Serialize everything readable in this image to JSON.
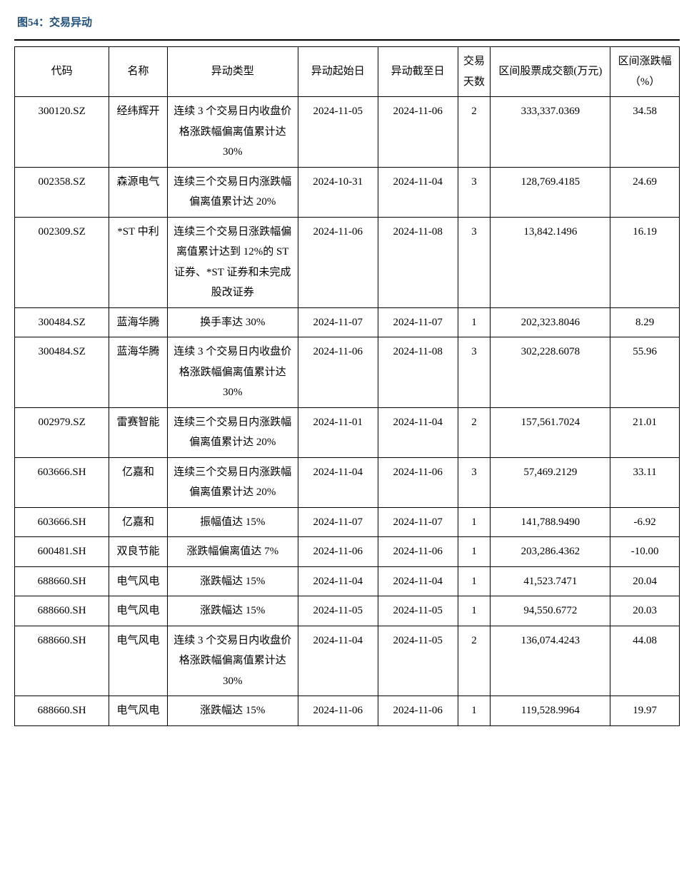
{
  "title": "图54：交易异动",
  "table": {
    "columns": [
      "代码",
      "名称",
      "异动类型",
      "异动起始日",
      "异动截至日",
      "交易天数",
      "区间股票成交额(万元)",
      "区间涨跌幅（%）"
    ],
    "rows": [
      [
        "300120.SZ",
        "经纬辉开",
        "连续 3 个交易日内收盘价格涨跌幅偏离值累计达 30%",
        "2024-11-05",
        "2024-11-06",
        "2",
        "333,337.0369",
        "34.58"
      ],
      [
        "002358.SZ",
        "森源电气",
        "连续三个交易日内涨跌幅偏离值累计达 20%",
        "2024-10-31",
        "2024-11-04",
        "3",
        "128,769.4185",
        "24.69"
      ],
      [
        "002309.SZ",
        "*ST 中利",
        "连续三个交易日涨跌幅偏离值累计达到 12%的 ST 证券、*ST 证券和未完成股改证券",
        "2024-11-06",
        "2024-11-08",
        "3",
        "13,842.1496",
        "16.19"
      ],
      [
        "300484.SZ",
        "蓝海华腾",
        "换手率达 30%",
        "2024-11-07",
        "2024-11-07",
        "1",
        "202,323.8046",
        "8.29"
      ],
      [
        "300484.SZ",
        "蓝海华腾",
        "连续 3 个交易日内收盘价格涨跌幅偏离值累计达 30%",
        "2024-11-06",
        "2024-11-08",
        "3",
        "302,228.6078",
        "55.96"
      ],
      [
        "002979.SZ",
        "雷赛智能",
        "连续三个交易日内涨跌幅偏离值累计达 20%",
        "2024-11-01",
        "2024-11-04",
        "2",
        "157,561.7024",
        "21.01"
      ],
      [
        "603666.SH",
        "亿嘉和",
        "连续三个交易日内涨跌幅偏离值累计达 20%",
        "2024-11-04",
        "2024-11-06",
        "3",
        "57,469.2129",
        "33.11"
      ],
      [
        "603666.SH",
        "亿嘉和",
        "振幅值达 15%",
        "2024-11-07",
        "2024-11-07",
        "1",
        "141,788.9490",
        "-6.92"
      ],
      [
        "600481.SH",
        "双良节能",
        "涨跌幅偏离值达 7%",
        "2024-11-06",
        "2024-11-06",
        "1",
        "203,286.4362",
        "-10.00"
      ],
      [
        "688660.SH",
        "电气风电",
        "涨跌幅达 15%",
        "2024-11-04",
        "2024-11-04",
        "1",
        "41,523.7471",
        "20.04"
      ],
      [
        "688660.SH",
        "电气风电",
        "涨跌幅达 15%",
        "2024-11-05",
        "2024-11-05",
        "1",
        "94,550.6772",
        "20.03"
      ],
      [
        "688660.SH",
        "电气风电",
        "连续 3 个交易日内收盘价格涨跌幅偏离值累计达 30%",
        "2024-11-04",
        "2024-11-05",
        "2",
        "136,074.4243",
        "44.08"
      ],
      [
        "688660.SH",
        "电气风电",
        "涨跌幅达 15%",
        "2024-11-06",
        "2024-11-06",
        "1",
        "119,528.9964",
        "19.97"
      ]
    ]
  },
  "style": {
    "title_color": "#1f4e79",
    "title_fontsize": 15,
    "body_fontsize": 15,
    "border_color": "#000000",
    "background_color": "#ffffff",
    "font_family": "SimSun"
  }
}
